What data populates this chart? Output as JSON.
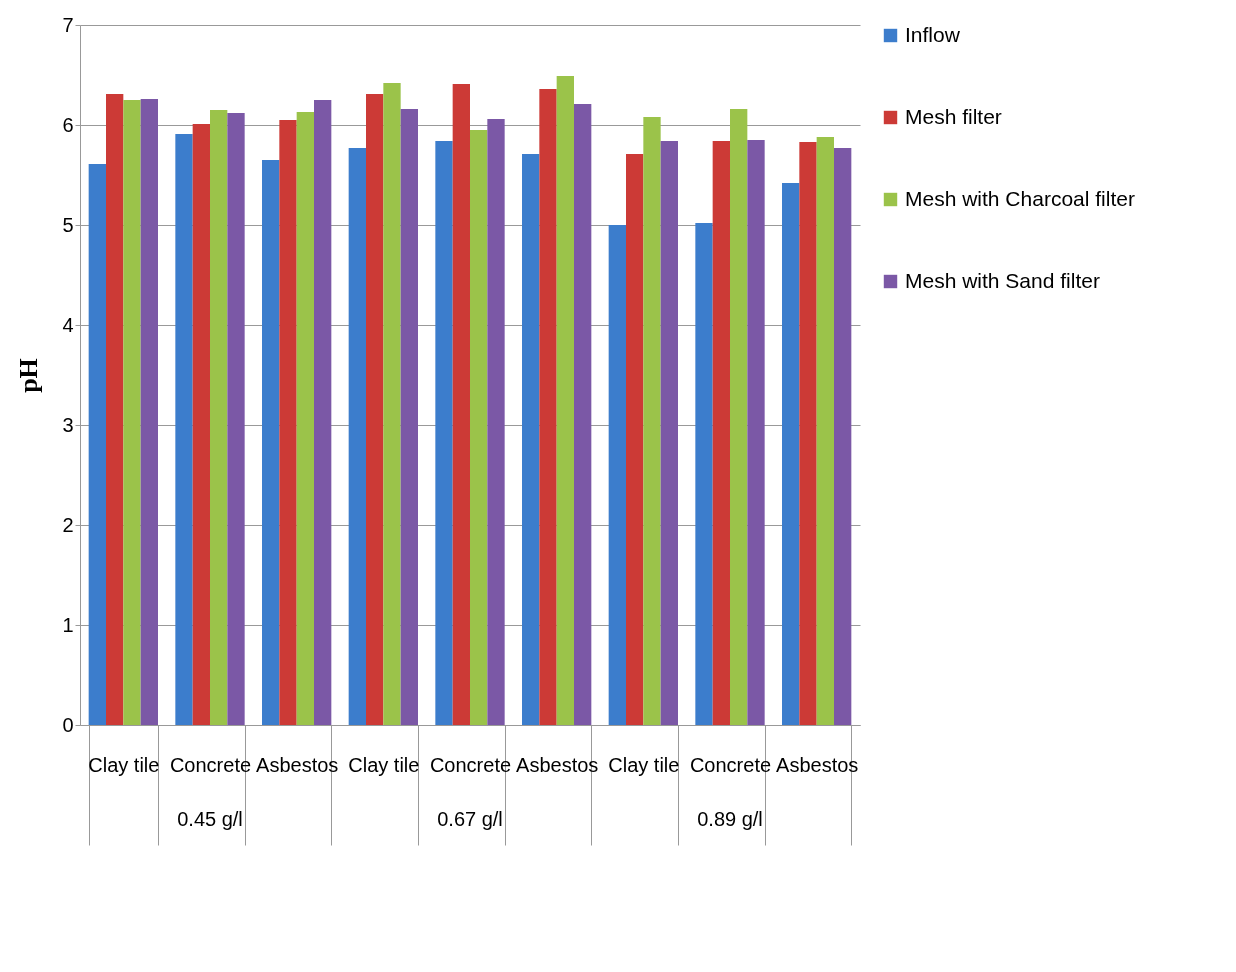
{
  "chart_data": {
    "type": "bar",
    "ylabel": "pH",
    "categories": [
      "Clay tile",
      "Concrete",
      "Asbestos",
      "Clay tile",
      "Concrete",
      "Asbestos",
      "Clay tile",
      "Concrete",
      "Asbestos"
    ],
    "series": [
      {
        "name": "Inflow",
        "color": "#3c7dcc",
        "values": [
          5.61,
          5.91,
          5.65,
          5.77,
          5.84,
          5.71,
          5.0,
          5.02,
          5.42
        ]
      },
      {
        "name": "Mesh filter",
        "color": "#cc3a36",
        "values": [
          6.31,
          6.01,
          6.05,
          6.31,
          6.41,
          6.36,
          5.71,
          5.84,
          5.83
        ]
      },
      {
        "name": "Mesh with Charcoal filter",
        "color": "#9bc34a",
        "values": [
          6.25,
          6.15,
          6.13,
          6.42,
          5.95,
          6.49,
          6.08,
          6.16,
          5.88
        ]
      },
      {
        "name": "Mesh with Sand filter",
        "color": "#7b58a6",
        "values": [
          6.26,
          6.12,
          6.25,
          6.16,
          6.06,
          6.21,
          5.84,
          5.85,
          5.77
        ]
      }
    ],
    "annotations": [
      "0.45 g/l",
      "0.67 g/l",
      "0.89 g/l"
    ],
    "ylim": [
      0,
      7
    ],
    "yticks": [
      0,
      1,
      2,
      3,
      4,
      5,
      6,
      7
    ],
    "grid": "y",
    "legend": "right"
  }
}
